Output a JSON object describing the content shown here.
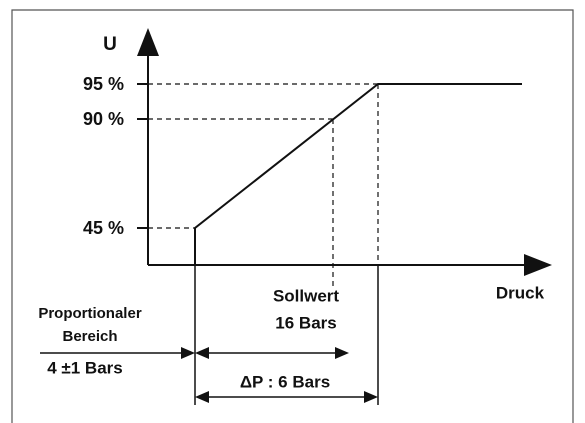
{
  "diagram": {
    "y_axis_label": "U",
    "x_axis_label": "Druck",
    "levels": [
      "95 %",
      "90 %",
      "45 %"
    ],
    "setpoint": [
      "Sollwert",
      "16 Bars"
    ],
    "proportional": [
      "Proportionaler",
      "Bereich",
      "4 ±1 Bars"
    ],
    "delta": "ΔP : 6 Bars"
  }
}
